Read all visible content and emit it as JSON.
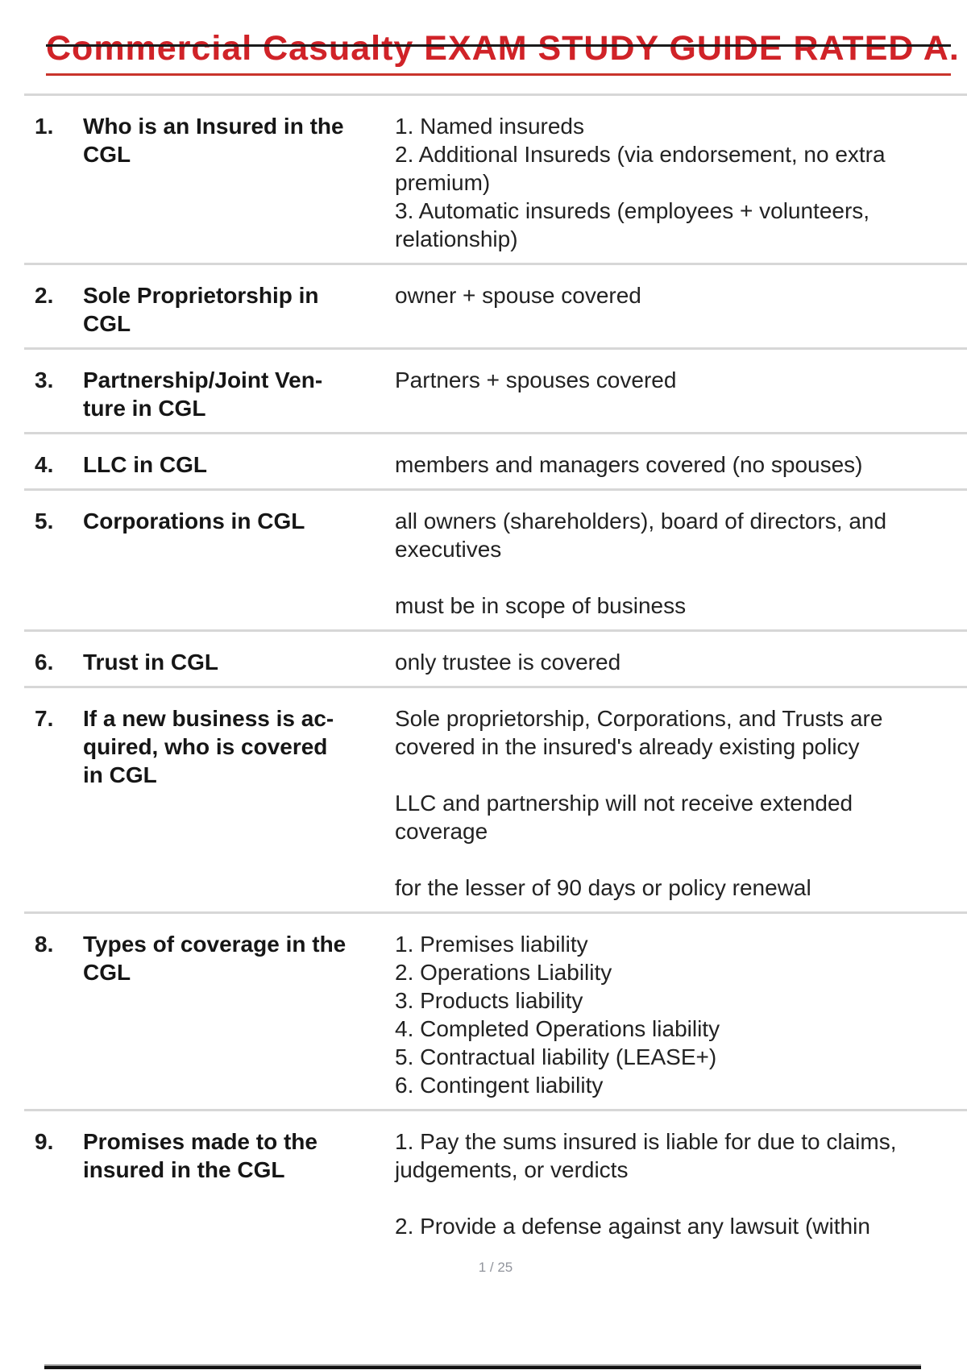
{
  "page": {
    "title": "Commercial Casualty EXAM STUDY GUIDE RATED A.",
    "footer": "1 / 25",
    "title_color": "#d02328",
    "separator_color": "#d7d7d7",
    "strikethrough_color": "#1b1b1b"
  },
  "rows": [
    {
      "num": "1.",
      "term": "Who is an Insured in the\nCGL",
      "def": "1. Named insureds\n2. Additional Insureds (via endorsement, no extra\npremium)\n3. Automatic insureds (employees + volunteers,\nrelationship)"
    },
    {
      "num": "2.",
      "term": "Sole Proprietorship in\nCGL",
      "def": "owner + spouse covered"
    },
    {
      "num": "3.",
      "term": "Partnership/Joint Ven-\nture in CGL",
      "def": "Partners + spouses covered"
    },
    {
      "num": "4.",
      "term": "LLC in CGL",
      "def": "members and managers covered (no spouses)"
    },
    {
      "num": "5.",
      "term": "Corporations in CGL",
      "def": "all owners (shareholders), board of directors, and\nexecutives\n\nmust be in scope of business"
    },
    {
      "num": "6.",
      "term": "Trust in CGL",
      "def": "only trustee is covered"
    },
    {
      "num": "7.",
      "term": "If a new business is ac-\nquired, who is covered\nin CGL",
      "def": "Sole proprietorship, Corporations, and Trusts are\ncovered in the insured's already existing policy\n\nLLC and partnership will not receive extended\ncoverage\n\nfor the lesser of 90 days or policy renewal"
    },
    {
      "num": "8.",
      "term": "Types of coverage in the\nCGL",
      "def": "1. Premises liability\n2. Operations Liability\n3. Products liability\n4. Completed Operations liability\n5. Contractual liability (LEASE+)\n6. Contingent liability"
    },
    {
      "num": "9.",
      "term": "Promises made to the\ninsured in the CGL",
      "def": "1. Pay the sums insured is liable for due to claims,\njudgements, or verdicts\n\n2. Provide a defense against any lawsuit (within"
    }
  ]
}
